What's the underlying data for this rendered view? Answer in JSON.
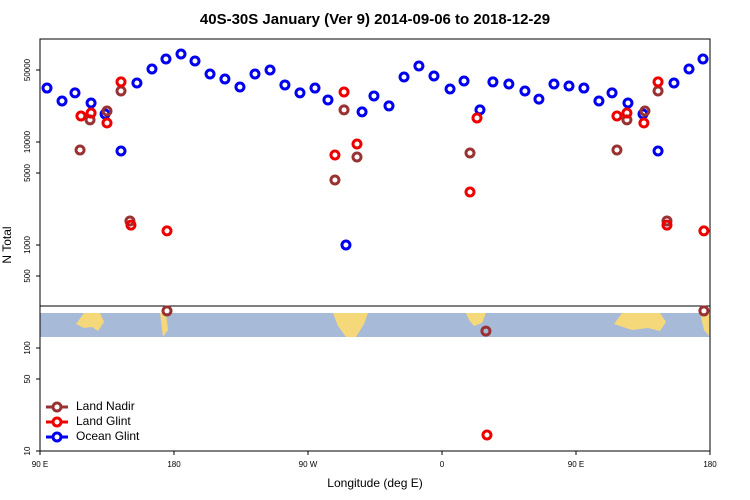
{
  "chart_data": {
    "type": "scatter",
    "title": "40S-30S January (Ver 9)   2014-09-06 to 2018-12-29",
    "x_label": "Longitude (deg E)",
    "y_label": "N Total",
    "xlim": [
      90,
      540
    ],
    "xticks": [
      {
        "value": 90,
        "label": "90 E"
      },
      180,
      {
        "value": 270,
        "label": "90 W"
      },
      {
        "value": 360,
        "label": "0"
      },
      {
        "value": 450,
        "label": "90 E"
      },
      {
        "value": 540,
        "label": "180"
      }
    ],
    "ylim": [
      10,
      100000
    ],
    "log_y": true,
    "yticks": [
      10,
      50,
      100,
      500,
      1000,
      5000,
      10000,
      50000
    ],
    "legend": "bottom left",
    "series": [
      {
        "name": "Land Nadir",
        "color": "#993333",
        "x": [
          116.9,
          123.6,
          135.0,
          144.4,
          150.4,
          175.3,
          288.1,
          294.2,
          302.9,
          378.8,
          389.5,
          477.5,
          484.2,
          496.3,
          505.1,
          511.1,
          535.9
        ],
        "values": [
          8360,
          16400,
          20000,
          31300,
          1710,
          229,
          4280,
          20500,
          7150,
          7820,
          146,
          8360,
          16400,
          20000,
          31300,
          1710,
          229
        ]
      },
      {
        "name": "Land Glint",
        "color": "#ee0000",
        "x": [
          117.5,
          124.3,
          135.0,
          144.4,
          151.1,
          175.3,
          288.1,
          294.2,
          302.9,
          378.8,
          383.5,
          390.2,
          477.5,
          484.2,
          495.6,
          505.1,
          511.1,
          535.9
        ],
        "values": [
          17900,
          19100,
          15300,
          38300,
          1560,
          1370,
          7480,
          30600,
          9570,
          3270,
          17100,
          14.3,
          17900,
          19100,
          15300,
          38300,
          1560,
          1370
        ]
      },
      {
        "name": "Ocean Glint",
        "color": "#0000ee",
        "x": [
          94.7,
          104.8,
          113.5,
          124.3,
          133.7,
          144.4,
          155.1,
          165.2,
          174.6,
          184.7,
          194.1,
          204.2,
          214.2,
          224.3,
          234.4,
          244.5,
          254.5,
          264.6,
          274.7,
          283.4,
          295.5,
          306.3,
          314.3,
          324.4,
          334.5,
          344.5,
          354.6,
          365.4,
          374.8,
          385.5,
          394.2,
          404.9,
          415.7,
          425.1,
          435.2,
          445.3,
          455.3,
          465.4,
          474.2,
          484.9,
          495.0,
          505.1,
          515.8,
          525.9,
          535.3
        ],
        "values": [
          33400,
          25000,
          30000,
          23900,
          18700,
          8180,
          37400,
          51100,
          64000,
          71500,
          61100,
          45700,
          40900,
          34200,
          45700,
          50000,
          35800,
          30000,
          33400,
          25600,
          1000,
          19600,
          28000,
          22400,
          42800,
          54700,
          43700,
          32700,
          39100,
          20500,
          38300,
          36600,
          31300,
          26100,
          36600,
          35000,
          33400,
          25000,
          30000,
          23900,
          18700,
          8180,
          37400,
          51100,
          64000
        ]
      }
    ]
  }
}
